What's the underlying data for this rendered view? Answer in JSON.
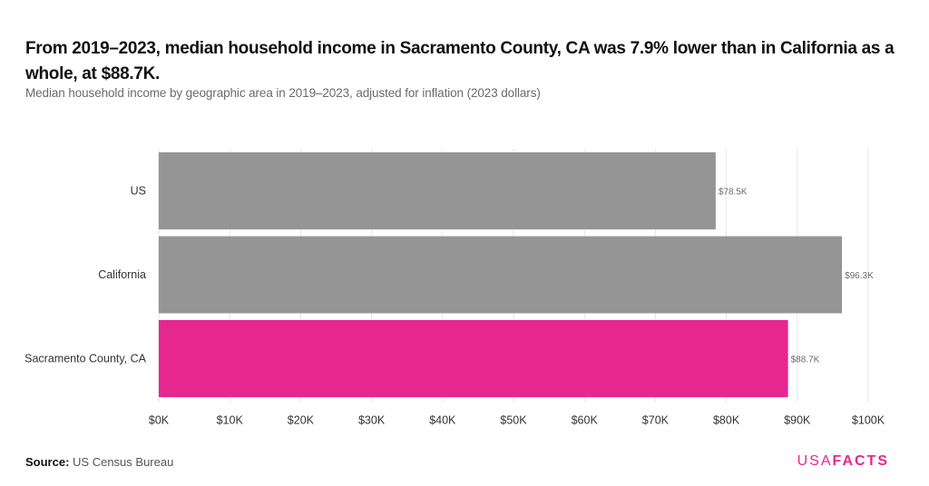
{
  "header": {
    "title": "From 2019–2023, median household income in Sacramento County, CA was 7.9% lower than in California as a whole, at $88.7K.",
    "subtitle": "Median household income by geographic area in 2019–2023, adjusted for inflation (2023 dollars)"
  },
  "footer": {
    "source_label": "Source:",
    "source_value": "US Census Bureau",
    "logo_part1": "USA",
    "logo_part2": "FACTS"
  },
  "colors": {
    "default_bar": "#959595",
    "highlight_bar": "#e6278f",
    "gridline": "#e6e6e6"
  },
  "chart_data": {
    "type": "bar",
    "orientation": "horizontal",
    "title": "From 2019–2023, median household income in Sacramento County, CA was 7.9% lower than in California as a whole, at $88.7K.",
    "subtitle": "Median household income by geographic area in 2019–2023, adjusted for inflation (2023 dollars)",
    "categories": [
      "US",
      "California",
      "Sacramento County, CA"
    ],
    "values": [
      78.5,
      96.3,
      88.7
    ],
    "value_labels": [
      "$78.5K",
      "$96.3K",
      "$88.7K"
    ],
    "highlight": [
      false,
      false,
      true
    ],
    "xlabel": "",
    "ylabel": "",
    "xlim": [
      0,
      100
    ],
    "x_ticks": [
      0,
      10,
      20,
      30,
      40,
      50,
      60,
      70,
      80,
      90,
      100
    ],
    "x_tick_labels": [
      "$0K",
      "$10K",
      "$20K",
      "$30K",
      "$40K",
      "$50K",
      "$60K",
      "$70K",
      "$80K",
      "$90K",
      "$100K"
    ],
    "grid": true,
    "units": "thousands of 2023 dollars"
  }
}
